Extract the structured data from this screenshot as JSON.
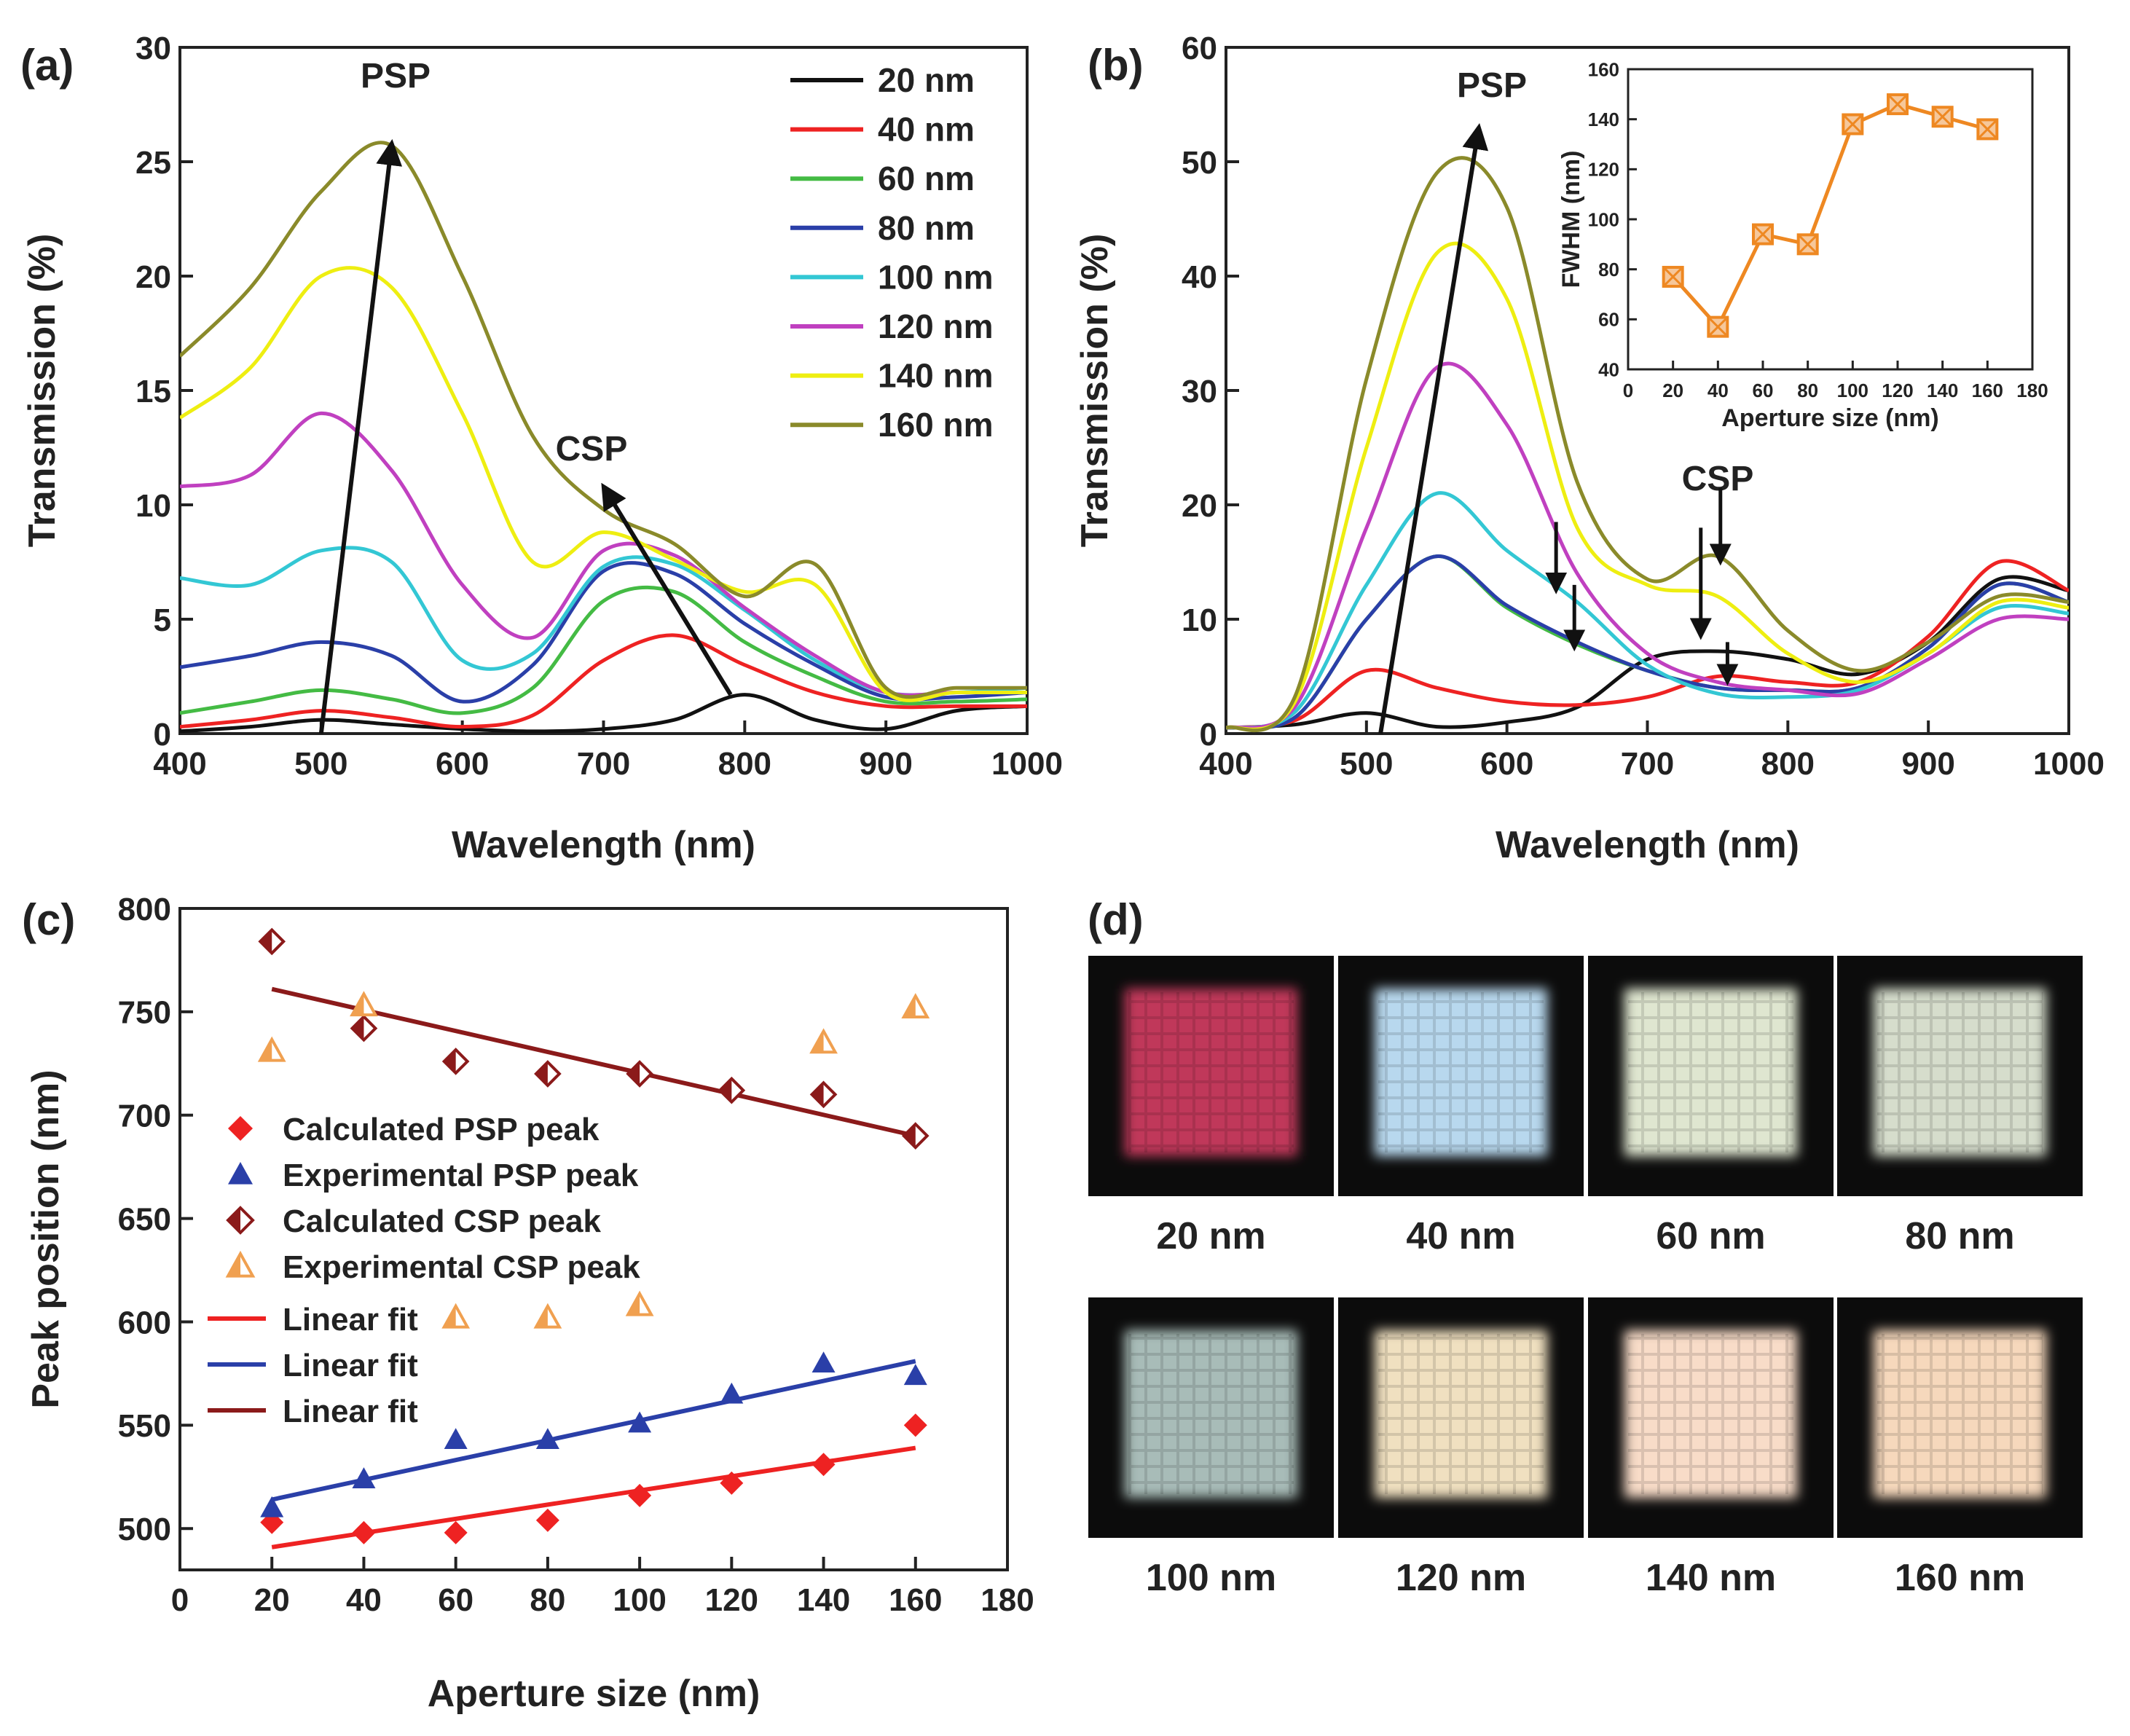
{
  "colors": {
    "20 nm": "#111111",
    "40 nm": "#ee2222",
    "60 nm": "#44bb44",
    "80 nm": "#2a3fa8",
    "100 nm": "#33c7d4",
    "120 nm": "#c040c0",
    "140 nm": "#eeee11",
    "160 nm": "#8a8a2a",
    "orange": "#ee8822",
    "red": "#ee2222",
    "blue": "#2a3fa8",
    "darkred": "#8b1a1a",
    "lightorange": "#f0a050"
  },
  "chart_data": [
    {
      "panel": "(a)",
      "type": "line",
      "xlabel": "Wavelength (nm)",
      "ylabel": "Transmission (%)",
      "xlim": [
        400,
        1000
      ],
      "ylim": [
        0,
        30
      ],
      "xticks": [
        400,
        500,
        600,
        700,
        800,
        900,
        1000
      ],
      "yticks": [
        0,
        5,
        10,
        15,
        20,
        25,
        30
      ],
      "annotations": [
        "PSP",
        "CSP"
      ],
      "legend": "top-right",
      "x": [
        400,
        450,
        500,
        550,
        600,
        650,
        700,
        750,
        800,
        850,
        900,
        950,
        1000
      ],
      "series": [
        {
          "name": "20 nm",
          "values": [
            0.1,
            0.3,
            0.6,
            0.4,
            0.2,
            0.1,
            0.2,
            0.6,
            1.7,
            0.6,
            0.2,
            1.0,
            1.2
          ]
        },
        {
          "name": "40 nm",
          "values": [
            0.3,
            0.6,
            1.0,
            0.7,
            0.3,
            0.8,
            3.2,
            4.3,
            3.0,
            1.8,
            1.2,
            1.2,
            1.2
          ]
        },
        {
          "name": "60 nm",
          "values": [
            0.9,
            1.4,
            1.9,
            1.5,
            0.9,
            2.0,
            5.8,
            6.2,
            4.0,
            2.5,
            1.4,
            1.4,
            1.5
          ]
        },
        {
          "name": "80 nm",
          "values": [
            2.9,
            3.4,
            4.0,
            3.4,
            1.4,
            3.0,
            7.1,
            7.0,
            4.8,
            3.0,
            1.6,
            1.6,
            1.8
          ]
        },
        {
          "name": "100 nm",
          "values": [
            6.8,
            6.5,
            8.0,
            7.5,
            3.2,
            3.5,
            7.3,
            7.4,
            5.4,
            3.2,
            1.8,
            1.8,
            2.0
          ]
        },
        {
          "name": "120 nm",
          "values": [
            10.8,
            11.3,
            14.0,
            11.5,
            6.5,
            4.2,
            8.0,
            7.8,
            5.5,
            3.4,
            1.8,
            1.8,
            1.8
          ]
        },
        {
          "name": "140 nm",
          "values": [
            13.8,
            16.0,
            20.0,
            19.5,
            14.0,
            7.5,
            8.8,
            7.6,
            6.2,
            6.5,
            1.8,
            1.8,
            1.8
          ]
        },
        {
          "name": "160 nm",
          "values": [
            16.5,
            19.5,
            23.7,
            25.7,
            20.0,
            13.0,
            9.8,
            8.3,
            6.0,
            7.4,
            2.0,
            2.0,
            2.0
          ]
        }
      ]
    },
    {
      "panel": "(b)",
      "type": "line",
      "xlabel": "Wavelength (nm)",
      "ylabel": "Transmission (%)",
      "xlim": [
        400,
        1000
      ],
      "ylim": [
        0,
        60
      ],
      "xticks": [
        400,
        500,
        600,
        700,
        800,
        900,
        1000
      ],
      "yticks": [
        0,
        10,
        20,
        30,
        40,
        50,
        60
      ],
      "annotations": [
        "PSP",
        "CSP"
      ],
      "x": [
        400,
        450,
        500,
        550,
        600,
        650,
        700,
        750,
        800,
        850,
        900,
        950,
        1000
      ],
      "series": [
        {
          "name": "20 nm",
          "values": [
            0.5,
            0.8,
            1.8,
            0.6,
            1.0,
            2.3,
            6.5,
            7.2,
            6.5,
            5.2,
            8.0,
            13.5,
            12.5
          ]
        },
        {
          "name": "40 nm",
          "values": [
            0.5,
            1.2,
            5.5,
            4.0,
            2.8,
            2.5,
            3.2,
            5.0,
            4.5,
            4.5,
            8.5,
            15.0,
            12.5
          ]
        },
        {
          "name": "60 nm",
          "values": [
            0.5,
            1.5,
            10.0,
            15.5,
            11.0,
            7.8,
            5.5,
            4.0,
            3.8,
            4.0,
            7.5,
            13.0,
            11.5
          ]
        },
        {
          "name": "80 nm",
          "values": [
            0.5,
            1.5,
            10.0,
            15.5,
            11.2,
            8.0,
            5.5,
            4.0,
            3.8,
            4.0,
            7.5,
            13.0,
            11.5
          ]
        },
        {
          "name": "100 nm",
          "values": [
            0.5,
            2.0,
            13.0,
            21.0,
            16.0,
            11.5,
            6.0,
            3.5,
            3.2,
            3.8,
            7.0,
            11.0,
            10.5
          ]
        },
        {
          "name": "120 nm",
          "values": [
            0.5,
            2.5,
            18.0,
            32.0,
            27.0,
            14.0,
            7.0,
            4.5,
            3.8,
            3.5,
            6.5,
            10.0,
            10.0
          ]
        },
        {
          "name": "140 nm",
          "values": [
            0.5,
            3.0,
            25.0,
            42.0,
            38.0,
            18.0,
            13.0,
            12.0,
            7.0,
            4.5,
            7.0,
            11.5,
            11.0
          ]
        },
        {
          "name": "160 nm",
          "values": [
            0.5,
            3.5,
            31.0,
            49.0,
            46.0,
            22.0,
            13.5,
            15.5,
            9.0,
            5.5,
            8.0,
            12.0,
            11.5
          ]
        }
      ]
    },
    {
      "panel": "(b) inset",
      "type": "line",
      "xlabel": "Aperture size (nm)",
      "ylabel": "FWHM (nm)",
      "xlim": [
        0,
        180
      ],
      "ylim": [
        40,
        160
      ],
      "xticks": [
        0,
        20,
        40,
        60,
        80,
        100,
        120,
        140,
        160,
        180
      ],
      "yticks": [
        40,
        60,
        80,
        100,
        120,
        140,
        160
      ],
      "series": [
        {
          "name": "FWHM",
          "x": [
            20,
            40,
            60,
            80,
            100,
            120,
            140,
            160
          ],
          "values": [
            77,
            57,
            94,
            90,
            138,
            146,
            141,
            136
          ]
        }
      ]
    },
    {
      "panel": "(c)",
      "type": "scatter",
      "xlabel": "Aperture size (nm)",
      "ylabel": "Peak position (nm)",
      "xlim": [
        0,
        180
      ],
      "ylim": [
        480,
        800
      ],
      "xticks": [
        0,
        20,
        40,
        60,
        80,
        100,
        120,
        140,
        160,
        180
      ],
      "yticks": [
        500,
        550,
        600,
        650,
        700,
        750,
        800
      ],
      "legend": "left",
      "series": [
        {
          "name": "Calculated PSP peak",
          "marker": "diamond",
          "x": [
            20,
            40,
            60,
            80,
            100,
            120,
            140,
            160
          ],
          "values": [
            503,
            498,
            498,
            504,
            516,
            522,
            531,
            550
          ]
        },
        {
          "name": "Experimental PSP peak",
          "marker": "triangle",
          "x": [
            20,
            40,
            60,
            80,
            100,
            120,
            140,
            160
          ],
          "values": [
            510,
            524,
            543,
            543,
            551,
            565,
            580,
            574
          ]
        },
        {
          "name": "Calculated CSP peak",
          "marker": "half-diamond",
          "x": [
            20,
            40,
            60,
            80,
            100,
            120,
            140,
            160
          ],
          "values": [
            784,
            742,
            726,
            720,
            720,
            712,
            710,
            690
          ]
        },
        {
          "name": "Experimental CSP peak",
          "marker": "half-triangle",
          "x": [
            20,
            40,
            60,
            80,
            100,
            120,
            140,
            160
          ],
          "values": [
            731,
            753,
            602,
            602,
            608,
            null,
            735,
            752
          ]
        }
      ],
      "fits": [
        {
          "name": "Linear fit",
          "color": "red",
          "x": [
            20,
            160
          ],
          "values": [
            491,
            539
          ]
        },
        {
          "name": "Linear fit",
          "color": "blue",
          "x": [
            20,
            160
          ],
          "values": [
            514,
            581
          ]
        },
        {
          "name": "Linear fit",
          "color": "darkred",
          "x": [
            20,
            160
          ],
          "values": [
            761,
            690
          ]
        }
      ]
    }
  ],
  "panel_d": {
    "label": "(d)",
    "images": [
      {
        "caption": "20 nm",
        "color": "#c0385a"
      },
      {
        "caption": "40 nm",
        "color": "#b8d8ee"
      },
      {
        "caption": "60 nm",
        "color": "#dfe6d0"
      },
      {
        "caption": "80 nm",
        "color": "#d6ddcc"
      },
      {
        "caption": "100 nm",
        "color": "#a8bcb8"
      },
      {
        "caption": "120 nm",
        "color": "#f0e0c0"
      },
      {
        "caption": "140 nm",
        "color": "#f8dcc8"
      },
      {
        "caption": "160 nm",
        "color": "#f6d8bc"
      }
    ]
  }
}
